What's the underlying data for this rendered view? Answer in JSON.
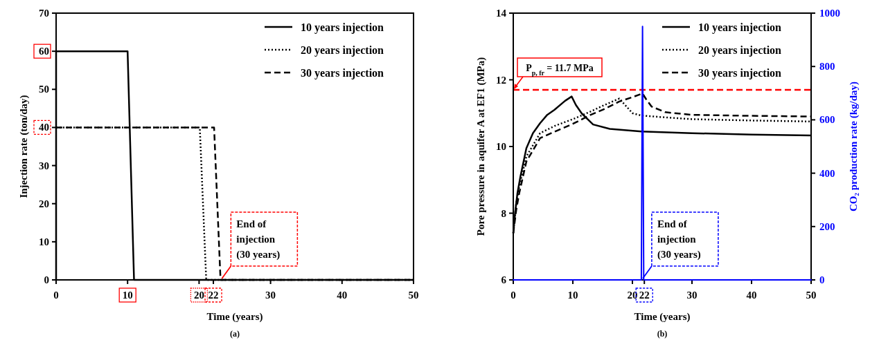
{
  "chart_data": [
    {
      "type": "line",
      "title": "(a)",
      "xlabel": "Time (years)",
      "ylabel": "Injection rate (ton/day)",
      "xlim": [
        0,
        50
      ],
      "ylim": [
        0,
        70
      ],
      "xticks": [
        0,
        10,
        20,
        22,
        30,
        40,
        50
      ],
      "yticks": [
        0,
        10,
        20,
        30,
        40,
        50,
        60,
        70
      ],
      "legend": "top right",
      "grid": false,
      "series": [
        {
          "name": "10 years injection",
          "color": "#000000",
          "line_style": "solid",
          "x": [
            0,
            0,
            10,
            10.9,
            50
          ],
          "values": [
            0,
            60,
            60,
            0,
            0
          ]
        },
        {
          "name": "20 years injection",
          "color": "#000000",
          "line_style": "dotted",
          "x": [
            0,
            20.1,
            21,
            50
          ],
          "values": [
            40,
            40,
            0,
            0
          ]
        },
        {
          "name": "30 years injection",
          "color": "#000000",
          "line_style": "dashed",
          "x": [
            0,
            22.1,
            23,
            50
          ],
          "values": [
            40,
            40,
            0,
            0
          ]
        }
      ],
      "annotations": [
        {
          "text": "End of\ninjection\n(30 years)",
          "x": 23,
          "y": 0
        }
      ]
    },
    {
      "type": "line",
      "title": "(b)",
      "xlabel": "Time (years)",
      "ylabel": "Pore pressure in aquifer A at EF1 (MPa)",
      "y2label": "CO₂ production rate (kg/day)",
      "xlim": [
        0,
        50
      ],
      "ylim": [
        6,
        14
      ],
      "y2lim": [
        0,
        1000
      ],
      "xticks": [
        0,
        10,
        20,
        22,
        30,
        40,
        50
      ],
      "yticks": [
        6,
        8,
        10,
        12,
        14
      ],
      "y2ticks": [
        0,
        200,
        400,
        600,
        800,
        1000
      ],
      "legend": "top right",
      "grid": false,
      "series": [
        {
          "name": "10 years injection",
          "color": "#000000",
          "line_style": "solid",
          "x": [
            0,
            0.3,
            0.7,
            1.2,
            2.2,
            3.3,
            4.5,
            5.7,
            6.9,
            8.7,
            9.8,
            10.5,
            11.5,
            13.4,
            16.2,
            21.5,
            30,
            40,
            50
          ],
          "values": [
            7.4,
            8.0,
            8.6,
            9.1,
            9.95,
            10.4,
            10.7,
            10.95,
            11.1,
            11.37,
            11.5,
            11.25,
            10.99,
            10.66,
            10.53,
            10.45,
            10.4,
            10.36,
            10.33
          ]
        },
        {
          "name": "20 years injection",
          "color": "#000000",
          "line_style": "dotted",
          "x": [
            0,
            0.5,
            1,
            2.2,
            4.5,
            7,
            10,
            13,
            15,
            17.8,
            19,
            20,
            21.5,
            25,
            30,
            40,
            50
          ],
          "values": [
            7.4,
            8.3,
            8.8,
            9.7,
            10.4,
            10.62,
            10.82,
            11.05,
            11.22,
            11.44,
            11.2,
            11.0,
            10.93,
            10.88,
            10.82,
            10.78,
            10.75
          ]
        },
        {
          "name": "30 years injection",
          "color": "#000000",
          "line_style": "dashed",
          "x": [
            0,
            0.5,
            1,
            2.2,
            4.5,
            7,
            10,
            13,
            15,
            17.8,
            20,
            21.7,
            22.3,
            23.2,
            25.5,
            30,
            40,
            50
          ],
          "values": [
            7.4,
            8.1,
            8.6,
            9.55,
            10.25,
            10.45,
            10.68,
            10.95,
            11.1,
            11.35,
            11.48,
            11.59,
            11.42,
            11.2,
            11.03,
            10.95,
            10.92,
            10.9
          ]
        },
        {
          "color": "#0000ff",
          "line_style": "solid",
          "axis": "y2",
          "x": [
            0,
            21.5,
            21.7,
            21.9,
            50
          ],
          "values": [
            0,
            0,
            950,
            0,
            0
          ]
        }
      ],
      "ref_lines": [
        {
          "axis": "y",
          "value": 11.7,
          "label": "P$_{p, fr}$ = 11.7 MPa",
          "color": "#ff0000",
          "line_style": "dashed"
        }
      ],
      "annotations": [
        {
          "text": "End of\ninjection\n(30 years)",
          "x": 21.5,
          "y": 6
        }
      ]
    }
  ]
}
